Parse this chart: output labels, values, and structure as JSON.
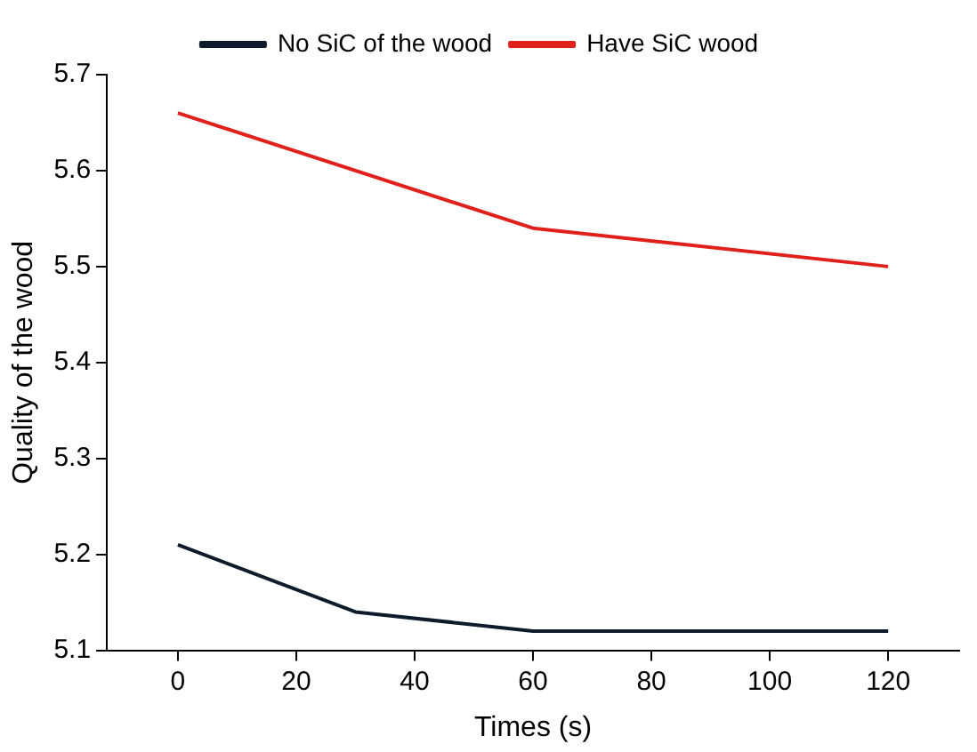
{
  "chart_data": {
    "type": "line",
    "xlabel": "Times (s)",
    "ylabel": "Quality of the wood",
    "xlim": [
      -12,
      132
    ],
    "xticks": [
      0,
      20,
      40,
      60,
      80,
      100,
      120
    ],
    "ylim": [
      5.1,
      5.7
    ],
    "yticks": [
      5.1,
      5.2,
      5.3,
      5.4,
      5.5,
      5.6,
      5.7
    ],
    "series": [
      {
        "name": "No SiC of the wood",
        "color": "#0d1b2a",
        "x": [
          0,
          30,
          60,
          120
        ],
        "values": [
          5.21,
          5.14,
          5.12,
          5.12
        ]
      },
      {
        "name": "Have SiC wood",
        "color": "#e0201b",
        "x": [
          0,
          60,
          120
        ],
        "values": [
          5.66,
          5.54,
          5.5
        ]
      }
    ],
    "grid": false,
    "legend": "top",
    "marker": "none",
    "line_style": "solid"
  }
}
